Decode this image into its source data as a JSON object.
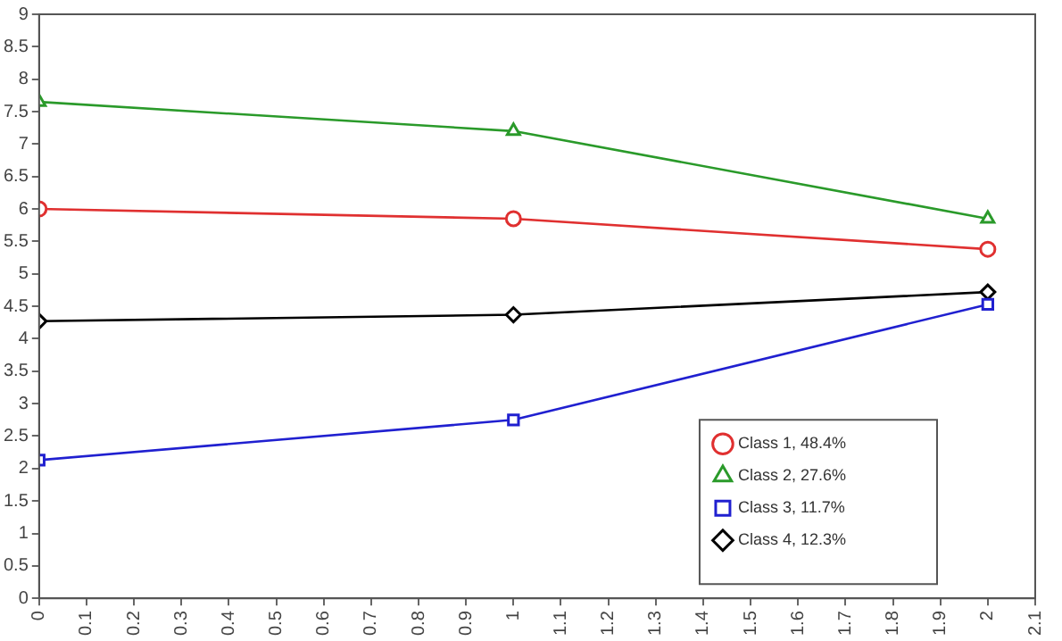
{
  "chart_data": {
    "type": "line",
    "x": [
      0,
      1,
      2
    ],
    "series": [
      {
        "name": "Class 1, 48.4%",
        "color": "#e03030",
        "marker": "circle",
        "values": [
          6.0,
          5.85,
          5.38
        ]
      },
      {
        "name": "Class 2, 27.6%",
        "color": "#2a9a2a",
        "marker": "triangle",
        "values": [
          7.65,
          7.2,
          5.85
        ]
      },
      {
        "name": "Class 3, 11.7%",
        "color": "#2020d0",
        "marker": "square",
        "values": [
          2.13,
          2.75,
          4.53
        ]
      },
      {
        "name": "Class 4, 12.3%",
        "color": "#000000",
        "marker": "diamond",
        "values": [
          4.27,
          4.37,
          4.72
        ]
      }
    ],
    "xlim": [
      0,
      2.1
    ],
    "xticks": [
      0,
      0.1,
      0.2,
      0.3,
      0.4,
      0.5,
      0.6,
      0.7,
      0.8,
      0.9,
      1,
      1.1,
      1.2,
      1.3,
      1.4,
      1.5,
      1.6,
      1.7,
      1.8,
      1.9,
      2,
      2.1
    ],
    "ylim": [
      0,
      9
    ],
    "yticks": [
      0,
      0.5,
      1,
      1.5,
      2,
      2.5,
      3,
      3.5,
      4,
      4.5,
      5,
      5.5,
      6,
      6.5,
      7,
      7.5,
      8,
      8.5,
      9
    ],
    "grid": false,
    "legend": "bottom right",
    "line_style": "solid"
  }
}
